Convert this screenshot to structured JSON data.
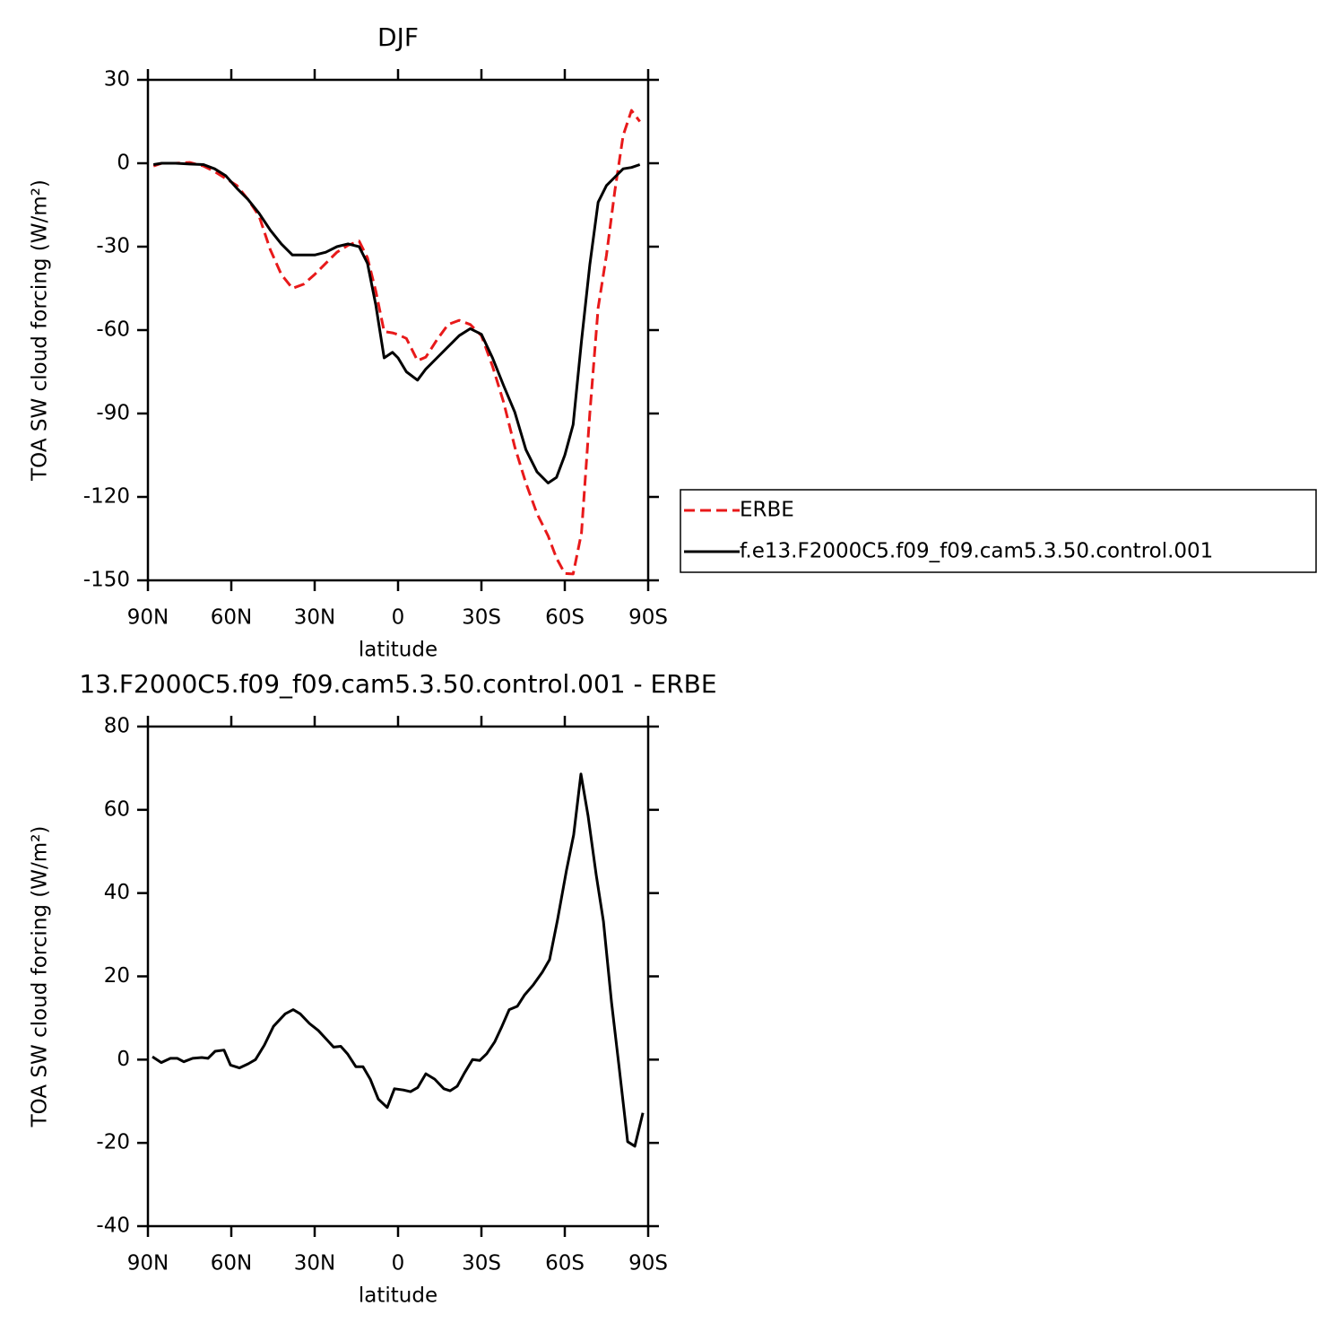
{
  "chart_data": [
    {
      "type": "line",
      "title": "DJF",
      "xlabel": "latitude",
      "ylabel": "TOA SW cloud forcing (W/m²)",
      "x": [
        88,
        85,
        80,
        75,
        70,
        66,
        62,
        58,
        54,
        50,
        46,
        42,
        38,
        34,
        30,
        26,
        22,
        18,
        14,
        11,
        8,
        5,
        2,
        0,
        -3,
        -7,
        -10,
        -14,
        -18,
        -22,
        -26,
        -30,
        -34,
        -38,
        -42,
        -46,
        -50,
        -54,
        -57,
        -60,
        -63,
        -66,
        -69,
        -72,
        -75,
        -78,
        -81,
        -84,
        -87
      ],
      "series": [
        {
          "name": "ERBE",
          "color": "#e8191a",
          "style": "dashed",
          "values": [
            -1,
            0,
            0,
            0.3,
            -1,
            -3,
            -5.5,
            -8,
            -13,
            -19,
            -31,
            -40,
            -45,
            -43.5,
            -40,
            -36,
            -32,
            -29.5,
            -28,
            -34,
            -46,
            -60.5,
            -61,
            -61.6,
            -63,
            -71,
            -69.7,
            -63.5,
            -58,
            -56.5,
            -58,
            -62,
            -73,
            -86,
            -102,
            -115,
            -126,
            -134,
            -142,
            -147.5,
            -147.7,
            -133,
            -90,
            -52,
            -33,
            -10,
            10,
            19,
            15
          ]
        },
        {
          "name": "f.e13.F2000C5.f09_f09.cam5.3.50.control.001",
          "color": "#000000",
          "style": "solid",
          "values": [
            -0.5,
            0,
            0,
            -0.3,
            -0.5,
            -2,
            -4.5,
            -9,
            -13,
            -18,
            -24,
            -29,
            -33,
            -33,
            -33,
            -32,
            -30,
            -29,
            -30,
            -36,
            -51,
            -70,
            -68,
            -70,
            -75,
            -78,
            -74,
            -70,
            -66,
            -62,
            -59.5,
            -61.5,
            -70,
            -80,
            -89.5,
            -103,
            -111,
            -115,
            -113,
            -105,
            -94,
            -64,
            -36.5,
            -14,
            -8,
            -5,
            -2,
            -1.5,
            -0.5
          ]
        }
      ],
      "xlim": [
        90,
        -90
      ],
      "xticks": [
        {
          "value": 90,
          "label": "90N"
        },
        {
          "value": 60,
          "label": "60N"
        },
        {
          "value": 30,
          "label": "30N"
        },
        0,
        {
          "value": -30,
          "label": "30S"
        },
        {
          "value": -60,
          "label": "60S"
        },
        {
          "value": -90,
          "label": "90S"
        }
      ],
      "ylim": [
        -150,
        30
      ],
      "yticks": [
        30,
        0,
        -30,
        -60,
        -90,
        -120,
        -150
      ],
      "legend": "outside right",
      "grid": false
    },
    {
      "type": "line",
      "title": "13.F2000C5.f09_f09.cam5.3.50.control.001 - ERBE",
      "xlabel": "latitude",
      "ylabel": "TOA SW cloud forcing (W/m²)",
      "x": [
        88.4,
        85.2,
        81.9,
        79.4,
        77.1,
        73.9,
        70.6,
        68.4,
        65.8,
        62.6,
        60.3,
        57.1,
        53.9,
        51.3,
        48.1,
        44.8,
        40.6,
        37.7,
        35.2,
        31.9,
        28.7,
        25.5,
        23.2,
        20.6,
        18.1,
        15.2,
        12.6,
        10,
        7.1,
        3.9,
        1.3,
        -1.9,
        -4.5,
        -7.1,
        -10,
        -13.2,
        -16.5,
        -18.7,
        -21.3,
        -23.9,
        -26.8,
        -29.4,
        -31.9,
        -34.8,
        -37.4,
        -40,
        -42.9,
        -45.5,
        -48.7,
        -51.9,
        -54.5,
        -57.4,
        -60.6,
        -63.2,
        -65.8,
        -68.4,
        -71.3,
        -73.9,
        -76.8,
        -79.4,
        -82.6,
        -85.2,
        -88.1
      ],
      "series": [
        {
          "color": "#000000",
          "style": "solid",
          "values": [
            0.7,
            -0.7,
            0.3,
            0.3,
            -0.5,
            0.3,
            0.5,
            0.3,
            2,
            2.3,
            -1.3,
            -2,
            -1,
            0,
            3.5,
            8,
            11,
            12,
            11,
            8.7,
            7,
            4.7,
            3,
            3.2,
            1.3,
            -1.7,
            -1.7,
            -4.7,
            -9.5,
            -11.5,
            -7,
            -7.3,
            -7.7,
            -6.7,
            -3.4,
            -4.7,
            -7,
            -7.5,
            -6.4,
            -3.2,
            0,
            -0.2,
            1.4,
            4.3,
            8,
            12,
            12.8,
            15.5,
            18,
            21,
            24,
            33.6,
            45.5,
            54,
            68.6,
            58.5,
            44.4,
            33.2,
            13.8,
            -0.9,
            -19.7,
            -20.8,
            -12.8
          ]
        }
      ],
      "xlim": [
        90,
        -90
      ],
      "xticks": [
        {
          "value": 90,
          "label": "90N"
        },
        {
          "value": 60,
          "label": "60N"
        },
        {
          "value": 30,
          "label": "30N"
        },
        0,
        {
          "value": -30,
          "label": "30S"
        },
        {
          "value": -60,
          "label": "60S"
        },
        {
          "value": -90,
          "label": "90S"
        }
      ],
      "ylim": [
        -40,
        80
      ],
      "yticks": [
        80,
        60,
        40,
        20,
        0,
        -20,
        -40
      ],
      "grid": false
    }
  ]
}
